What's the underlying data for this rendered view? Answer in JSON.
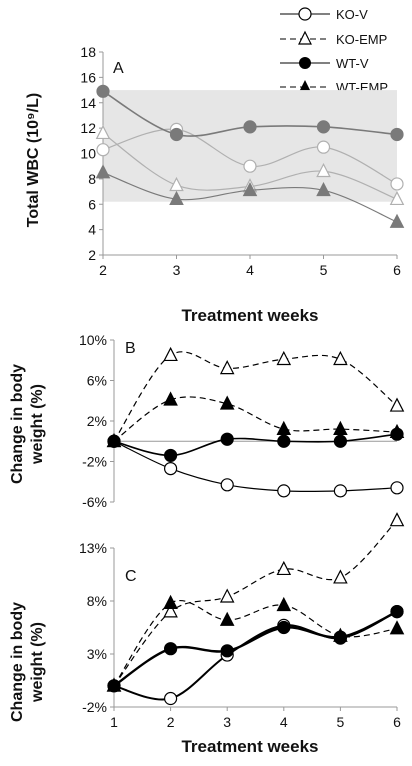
{
  "legend": [
    {
      "name": "KO-V",
      "marker": "circle-open",
      "dash": false
    },
    {
      "name": "KO-EMP",
      "marker": "triangle-open",
      "dash": true
    },
    {
      "name": "WT-V",
      "marker": "circle-filled",
      "dash": false
    },
    {
      "name": "WT-EMP",
      "marker": "triangle-filled",
      "dash": true
    }
  ],
  "colors": {
    "axis": "#999999",
    "shade": "#e6e6e6",
    "panelA_ko": "#b0b0b0",
    "panelA_wt": "#7a7a7a",
    "black": "#000000"
  },
  "chart_data": [
    {
      "panel": "A",
      "type": "line",
      "ylabel": "Total WBC (10⁹/L)",
      "xlabel": "Treatment weeks",
      "x": [
        2,
        3,
        4,
        5,
        6
      ],
      "ylim": [
        2,
        18
      ],
      "yticks": [
        "2",
        "4",
        "6",
        "8",
        "10",
        "12",
        "14",
        "16",
        "18"
      ],
      "ytick_values": [
        2,
        4,
        6,
        8,
        10,
        12,
        14,
        16,
        18
      ],
      "xticks": [
        "2",
        "3",
        "4",
        "5",
        "6"
      ],
      "shaded_band": [
        6.2,
        15
      ],
      "grid": false,
      "series": [
        {
          "name": "KO-V",
          "values": [
            10.3,
            11.9,
            9.0,
            10.5,
            7.6
          ]
        },
        {
          "name": "KO-EMP",
          "values": [
            11.6,
            7.5,
            7.4,
            8.6,
            6.4
          ]
        },
        {
          "name": "WT-V",
          "values": [
            14.9,
            11.5,
            12.1,
            12.1,
            11.5
          ]
        },
        {
          "name": "WT-EMP",
          "values": [
            8.5,
            6.4,
            7.1,
            7.1,
            4.6
          ]
        }
      ]
    },
    {
      "panel": "B",
      "type": "line",
      "ylabel": "Change in body weight (%)",
      "x": [
        1,
        2,
        3,
        4,
        5,
        6
      ],
      "ylim": [
        -6,
        10
      ],
      "yticks": [
        "-6%",
        "-2%",
        "2%",
        "6%",
        "10%"
      ],
      "ytick_values": [
        -6,
        -2,
        2,
        6,
        10
      ],
      "grid": false,
      "series": [
        {
          "name": "KO-V",
          "values": [
            0,
            -2.7,
            -4.3,
            -4.9,
            -4.9,
            -4.6
          ]
        },
        {
          "name": "KO-EMP",
          "values": [
            0,
            8.5,
            7.2,
            8.1,
            8.1,
            3.5
          ]
        },
        {
          "name": "WT-V",
          "values": [
            0,
            -1.4,
            0.2,
            0.0,
            0.0,
            0.7
          ]
        },
        {
          "name": "WT-EMP",
          "values": [
            0,
            4.1,
            3.7,
            1.2,
            1.2,
            0.9
          ]
        }
      ]
    },
    {
      "panel": "C",
      "type": "line",
      "ylabel": "Change in body weight (%)",
      "xlabel": "Treatment weeks",
      "x": [
        1,
        2,
        3,
        4,
        5,
        6
      ],
      "ylim": [
        -2,
        13
      ],
      "yticks": [
        "-2%",
        "3%",
        "8%",
        "13%"
      ],
      "ytick_values": [
        -2,
        3,
        8,
        13
      ],
      "xticks": [
        "1",
        "2",
        "3",
        "4",
        "5",
        "6"
      ],
      "grid": false,
      "series": [
        {
          "name": "KO-V",
          "values": [
            0,
            -1.2,
            2.9,
            5.7,
            4.5,
            7.0
          ]
        },
        {
          "name": "KO-EMP",
          "values": [
            0,
            7.0,
            8.4,
            11.0,
            10.2,
            15.6
          ]
        },
        {
          "name": "WT-V",
          "values": [
            0,
            3.5,
            3.3,
            5.5,
            4.6,
            7.0
          ]
        },
        {
          "name": "WT-EMP",
          "values": [
            0,
            7.8,
            6.2,
            7.6,
            4.7,
            5.4
          ]
        }
      ]
    }
  ]
}
